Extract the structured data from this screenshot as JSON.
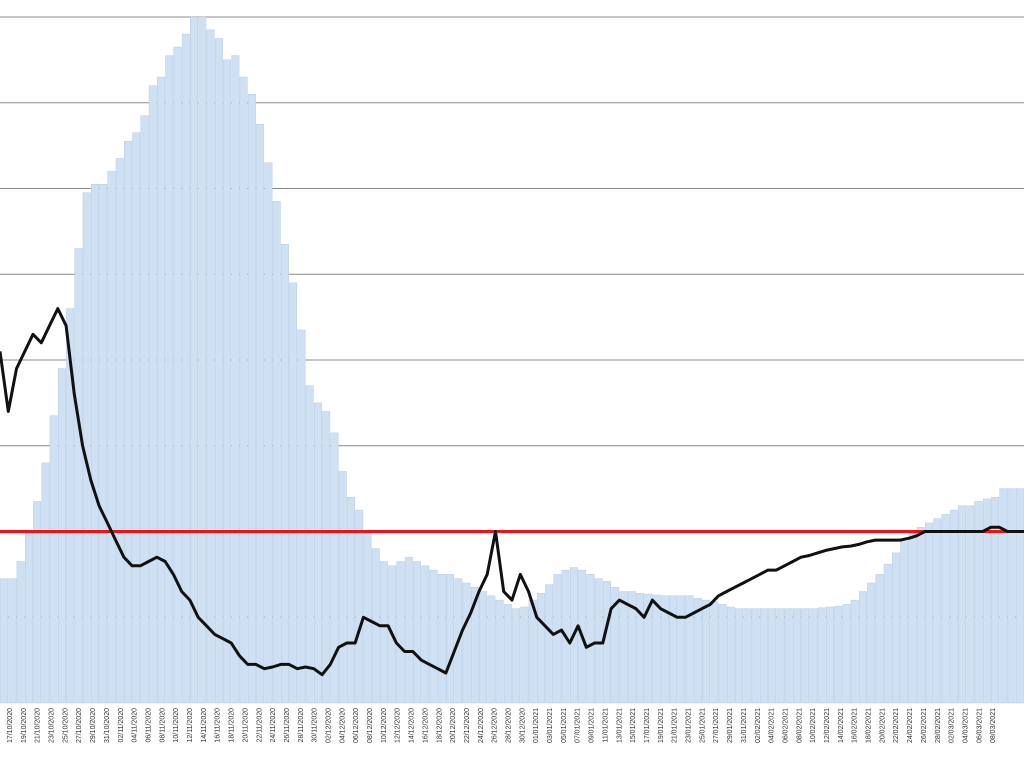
{
  "chart_data": {
    "type": "bar",
    "title": "",
    "xlabel": "",
    "ylabel": "",
    "ylim": [
      0,
      8
    ],
    "grid": true,
    "colors": {
      "bars": "#cfe0f3",
      "bar_edge": "#a9c3e2",
      "line": "#111111",
      "threshold": "#e8141a",
      "grid": "#8c8c8c"
    },
    "tick_labels": [
      "17/10/2020",
      "19/10/2020",
      "21/10/2020",
      "23/10/2020",
      "25/10/2020",
      "27/10/2020",
      "29/10/2020",
      "31/10/2020",
      "02/11/2020",
      "04/11/2020",
      "06/11/2020",
      "08/11/2020",
      "10/11/2020",
      "12/11/2020",
      "14/11/2020",
      "16/11/2020",
      "18/11/2020",
      "20/11/2020",
      "22/11/2020",
      "24/11/2020",
      "26/11/2020",
      "28/11/2020",
      "30/11/2020",
      "02/12/2020",
      "04/12/2020",
      "06/12/2020",
      "08/12/2020",
      "10/12/2020",
      "12/12/2020",
      "14/12/2020",
      "16/12/2020",
      "18/12/2020",
      "20/12/2020",
      "22/12/2020",
      "24/12/2020",
      "26/12/2020",
      "28/12/2020",
      "30/12/2020",
      "01/01/2021",
      "03/01/2021",
      "05/01/2021",
      "07/01/2021",
      "09/01/2021",
      "11/01/2021",
      "13/01/2021",
      "15/01/2021",
      "17/01/2021",
      "19/01/2021",
      "21/01/2021",
      "23/01/2021",
      "25/01/2021",
      "27/01/2021",
      "29/01/2021",
      "31/01/2021",
      "02/02/2021",
      "04/02/2021",
      "06/02/2021",
      "08/02/2021",
      "10/02/2021",
      "12/02/2021",
      "14/02/2021",
      "16/02/2021",
      "18/02/2021",
      "20/02/2021",
      "22/02/2021",
      "24/02/2021",
      "26/02/2021",
      "28/02/2021",
      "02/03/2021",
      "04/03/2021",
      "06/03/2021",
      "08/03/2021"
    ],
    "threshold": 2.0,
    "bars_values": [
      1.45,
      1.45,
      1.65,
      2.0,
      2.35,
      2.8,
      3.35,
      3.9,
      4.6,
      5.3,
      5.95,
      6.05,
      6.05,
      6.2,
      6.35,
      6.55,
      6.65,
      6.85,
      7.2,
      7.3,
      7.55,
      7.65,
      7.8,
      8.0,
      8.0,
      7.85,
      7.75,
      7.5,
      7.55,
      7.3,
      7.1,
      6.75,
      6.3,
      5.85,
      5.35,
      4.9,
      4.35,
      3.7,
      3.5,
      3.4,
      3.15,
      2.7,
      2.4,
      2.25,
      2.0,
      1.8,
      1.65,
      1.6,
      1.65,
      1.7,
      1.65,
      1.6,
      1.55,
      1.5,
      1.5,
      1.45,
      1.4,
      1.35,
      1.3,
      1.25,
      1.2,
      1.15,
      1.1,
      1.12,
      1.2,
      1.28,
      1.38,
      1.5,
      1.55,
      1.58,
      1.55,
      1.5,
      1.45,
      1.42,
      1.35,
      1.3,
      1.3,
      1.28,
      1.27,
      1.26,
      1.25,
      1.25,
      1.25,
      1.25,
      1.22,
      1.2,
      1.18,
      1.15,
      1.12,
      1.1,
      1.1,
      1.1,
      1.1,
      1.1,
      1.1,
      1.1,
      1.1,
      1.1,
      1.1,
      1.11,
      1.12,
      1.13,
      1.15,
      1.2,
      1.3,
      1.4,
      1.5,
      1.62,
      1.75,
      1.88,
      1.98,
      2.05,
      2.1,
      2.15,
      2.2,
      2.25,
      2.3,
      2.3,
      2.35,
      2.38,
      2.4,
      2.5,
      2.5,
      2.5
    ],
    "line_values": [
      4.1,
      3.4,
      3.9,
      4.1,
      4.3,
      4.2,
      4.4,
      4.6,
      4.4,
      3.6,
      3.0,
      2.6,
      2.3,
      2.1,
      1.9,
      1.7,
      1.6,
      1.6,
      1.65,
      1.7,
      1.65,
      1.5,
      1.3,
      1.2,
      1.0,
      0.9,
      0.8,
      0.75,
      0.7,
      0.55,
      0.45,
      0.45,
      0.4,
      0.42,
      0.45,
      0.45,
      0.4,
      0.42,
      0.4,
      0.33,
      0.45,
      0.65,
      0.7,
      0.7,
      1.0,
      0.95,
      0.9,
      0.9,
      0.7,
      0.6,
      0.6,
      0.5,
      0.45,
      0.4,
      0.35,
      0.6,
      0.85,
      1.05,
      1.3,
      1.5,
      2.0,
      1.3,
      1.2,
      1.5,
      1.3,
      1.0,
      0.9,
      0.8,
      0.85,
      0.7,
      0.9,
      0.65,
      0.7,
      0.7,
      1.1,
      1.2,
      1.15,
      1.1,
      1.0,
      1.2,
      1.1,
      1.05,
      1.0,
      1.0,
      1.05,
      1.1,
      1.15,
      1.25,
      1.3,
      1.35,
      1.4,
      1.45,
      1.5,
      1.55,
      1.55,
      1.6,
      1.65,
      1.7,
      1.72,
      1.75,
      1.78,
      1.8,
      1.82,
      1.83,
      1.85,
      1.88,
      1.9,
      1.9,
      1.9,
      1.9,
      1.92,
      1.95,
      2.0,
      2.0,
      2.0,
      2.0,
      2.0,
      2.0,
      2.0,
      2.0,
      2.05,
      2.05,
      2.0,
      2.0,
      2.0
    ]
  }
}
